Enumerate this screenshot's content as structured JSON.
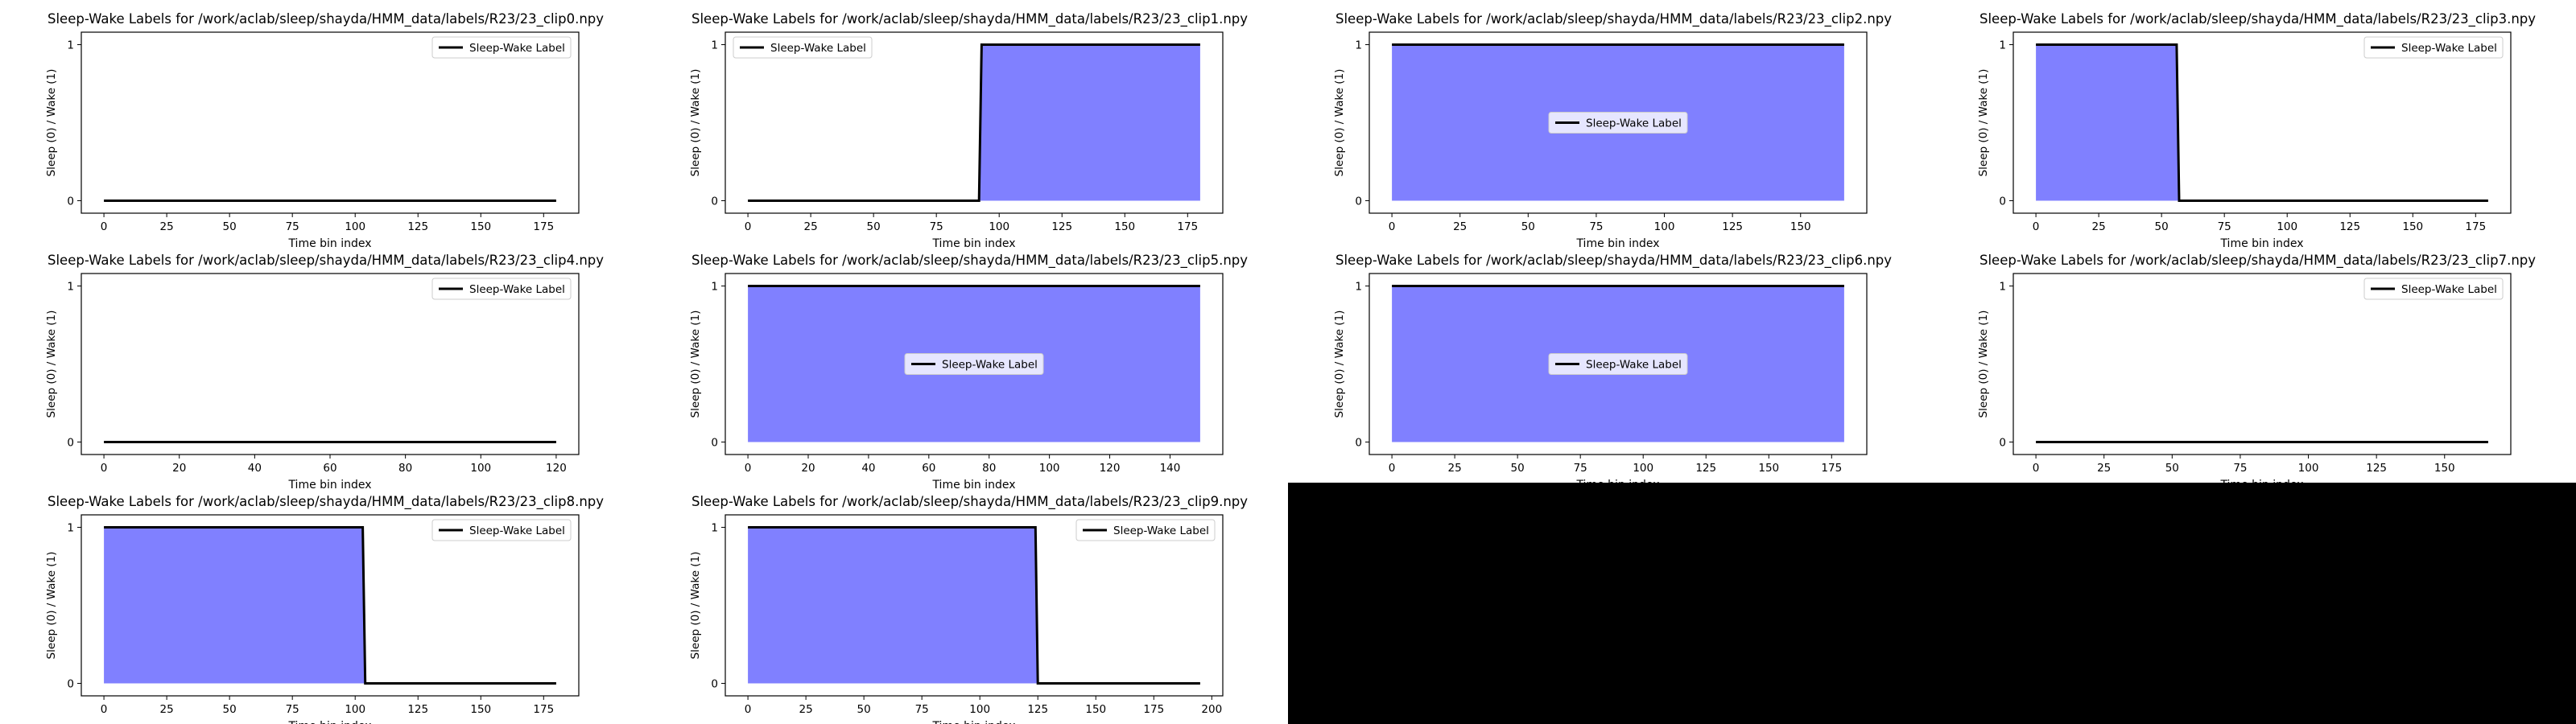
{
  "figure": {
    "background": "#000000",
    "fill_color": "#8080ff",
    "line_color": "#000000",
    "ylabel": "Sleep (0) / Wake (1)",
    "legend_label": "Sleep-Wake Label"
  },
  "chart_data": [
    {
      "type": "area",
      "title": "Sleep-Wake Labels for /work/aclab/sleep/shayda/HMM_data/labels/R23/23_clip0.npy",
      "xlabel": "Time bin index",
      "ylabel": "Sleep (0) / Wake (1)",
      "xlim": [
        -9,
        189
      ],
      "ylim": [
        -0.08,
        1.08
      ],
      "xticks": [
        0,
        25,
        50,
        75,
        100,
        125,
        150,
        175
      ],
      "yticks": [
        0,
        1
      ],
      "x": [
        0,
        180
      ],
      "y": [
        0,
        0
      ],
      "legend": "Sleep-Wake Label",
      "legend_position": "upper right"
    },
    {
      "type": "area",
      "title": "Sleep-Wake Labels for /work/aclab/sleep/shayda/HMM_data/labels/R23/23_clip1.npy",
      "xlabel": "Time bin index",
      "ylabel": "Sleep (0) / Wake (1)",
      "xlim": [
        -9,
        189
      ],
      "ylim": [
        -0.08,
        1.08
      ],
      "xticks": [
        0,
        25,
        50,
        75,
        100,
        125,
        150,
        175
      ],
      "yticks": [
        0,
        1
      ],
      "x": [
        0,
        92,
        93,
        180
      ],
      "y": [
        0,
        0,
        1,
        1
      ],
      "legend": "Sleep-Wake Label",
      "legend_position": "upper left"
    },
    {
      "type": "area",
      "title": "Sleep-Wake Labels for /work/aclab/sleep/shayda/HMM_data/labels/R23/23_clip2.npy",
      "xlabel": "Time bin index",
      "ylabel": "Sleep (0) / Wake (1)",
      "xlim": [
        -8.3,
        174.3
      ],
      "ylim": [
        -0.08,
        1.08
      ],
      "xticks": [
        0,
        25,
        50,
        75,
        100,
        125,
        150
      ],
      "yticks": [
        0,
        1
      ],
      "x": [
        0,
        166
      ],
      "y": [
        1,
        1
      ],
      "legend": "Sleep-Wake Label",
      "legend_position": "center"
    },
    {
      "type": "area",
      "title": "Sleep-Wake Labels for /work/aclab/sleep/shayda/HMM_data/labels/R23/23_clip3.npy",
      "xlabel": "Time bin index",
      "ylabel": "Sleep (0) / Wake (1)",
      "xlim": [
        -9,
        189
      ],
      "ylim": [
        -0.08,
        1.08
      ],
      "xticks": [
        0,
        25,
        50,
        75,
        100,
        125,
        150,
        175
      ],
      "yticks": [
        0,
        1
      ],
      "x": [
        0,
        56,
        57,
        180
      ],
      "y": [
        1,
        1,
        0,
        0
      ],
      "legend": "Sleep-Wake Label",
      "legend_position": "upper right"
    },
    {
      "type": "area",
      "title": "Sleep-Wake Labels for /work/aclab/sleep/shayda/HMM_data/labels/R23/23_clip4.npy",
      "xlabel": "Time bin index",
      "ylabel": "Sleep (0) / Wake (1)",
      "xlim": [
        -6,
        126
      ],
      "ylim": [
        -0.08,
        1.08
      ],
      "xticks": [
        0,
        20,
        40,
        60,
        80,
        100,
        120
      ],
      "yticks": [
        0,
        1
      ],
      "x": [
        0,
        120
      ],
      "y": [
        0,
        0
      ],
      "legend": "Sleep-Wake Label",
      "legend_position": "upper right"
    },
    {
      "type": "area",
      "title": "Sleep-Wake Labels for /work/aclab/sleep/shayda/HMM_data/labels/R23/23_clip5.npy",
      "xlabel": "Time bin index",
      "ylabel": "Sleep (0) / Wake (1)",
      "xlim": [
        -7.5,
        157.5
      ],
      "ylim": [
        -0.08,
        1.08
      ],
      "xticks": [
        0,
        20,
        40,
        60,
        80,
        100,
        120,
        140
      ],
      "yticks": [
        0,
        1
      ],
      "x": [
        0,
        150
      ],
      "y": [
        1,
        1
      ],
      "legend": "Sleep-Wake Label",
      "legend_position": "center"
    },
    {
      "type": "area",
      "title": "Sleep-Wake Labels for /work/aclab/sleep/shayda/HMM_data/labels/R23/23_clip6.npy",
      "xlabel": "Time bin index",
      "ylabel": "Sleep (0) / Wake (1)",
      "xlim": [
        -9,
        189
      ],
      "ylim": [
        -0.08,
        1.08
      ],
      "xticks": [
        0,
        25,
        50,
        75,
        100,
        125,
        150,
        175
      ],
      "yticks": [
        0,
        1
      ],
      "x": [
        0,
        180
      ],
      "y": [
        1,
        1
      ],
      "legend": "Sleep-Wake Label",
      "legend_position": "center"
    },
    {
      "type": "area",
      "title": "Sleep-Wake Labels for /work/aclab/sleep/shayda/HMM_data/labels/R23/23_clip7.npy",
      "xlabel": "Time bin index",
      "ylabel": "Sleep (0) / Wake (1)",
      "xlim": [
        -8.3,
        174.3
      ],
      "ylim": [
        -0.08,
        1.08
      ],
      "xticks": [
        0,
        25,
        50,
        75,
        100,
        125,
        150
      ],
      "yticks": [
        0,
        1
      ],
      "x": [
        0,
        166
      ],
      "y": [
        0,
        0
      ],
      "legend": "Sleep-Wake Label",
      "legend_position": "upper right"
    },
    {
      "type": "area",
      "title": "Sleep-Wake Labels for /work/aclab/sleep/shayda/HMM_data/labels/R23/23_clip8.npy",
      "xlabel": "Time bin index",
      "ylabel": "Sleep (0) / Wake (1)",
      "xlim": [
        -9,
        189
      ],
      "ylim": [
        -0.08,
        1.08
      ],
      "xticks": [
        0,
        25,
        50,
        75,
        100,
        125,
        150,
        175
      ],
      "yticks": [
        0,
        1
      ],
      "x": [
        0,
        103,
        104,
        180
      ],
      "y": [
        1,
        1,
        0,
        0
      ],
      "legend": "Sleep-Wake Label",
      "legend_position": "upper right"
    },
    {
      "type": "area",
      "title": "Sleep-Wake Labels for /work/aclab/sleep/shayda/HMM_data/labels/R23/23_clip9.npy",
      "xlabel": "Time bin index",
      "ylabel": "Sleep (0) / Wake (1)",
      "xlim": [
        -9.75,
        204.75
      ],
      "ylim": [
        -0.08,
        1.08
      ],
      "xticks": [
        0,
        25,
        50,
        75,
        100,
        125,
        150,
        175,
        200
      ],
      "yticks": [
        0,
        1
      ],
      "x": [
        0,
        124,
        125,
        195
      ],
      "y": [
        1,
        1,
        0,
        0
      ],
      "legend": "Sleep-Wake Label",
      "legend_position": "upper right"
    }
  ]
}
